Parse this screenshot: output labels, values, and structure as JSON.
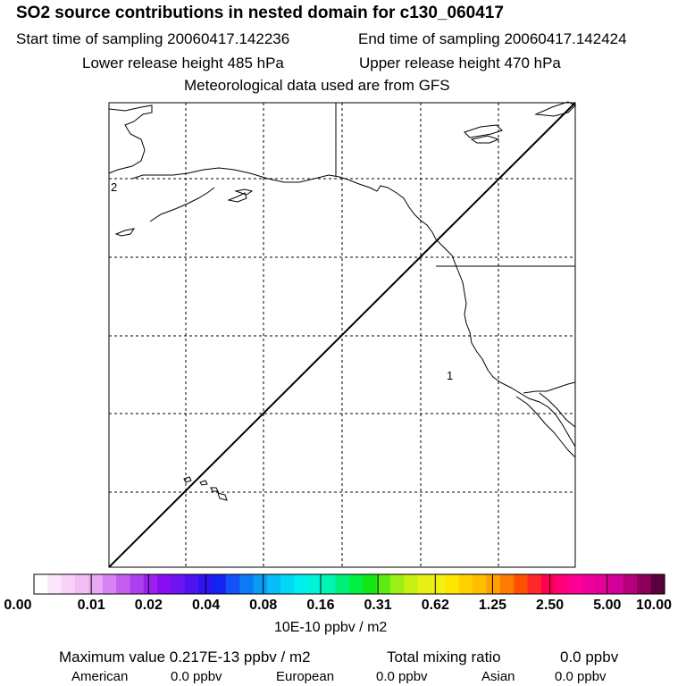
{
  "header": {
    "title": "SO2 source contributions in nested domain for c130_060417",
    "start_time": "Start time of sampling 20060417.142236",
    "end_time": "End time of sampling 20060417.142424",
    "lower_height": "Lower release height  485 hPa",
    "upper_height": "Upper release height  470 hPa",
    "met_data": "Meteorological data used are from GFS"
  },
  "map": {
    "labels": {
      "one": "1",
      "two": "2"
    },
    "colors": {
      "frame": "#000000",
      "grid": "#000000",
      "coast": "#000000",
      "track": "#000000"
    }
  },
  "colorbar": {
    "colors": [
      "#ffffff",
      "#fbe6fb",
      "#f7d2f7",
      "#f3bef3",
      "#e9a9f5",
      "#d884f2",
      "#c45ff0",
      "#ad3ff0",
      "#9a1ff0",
      "#8a0cf0",
      "#6e14f0",
      "#4e14f0",
      "#2e14f0",
      "#1424f0",
      "#1450f5",
      "#0a7af5",
      "#0a9cf5",
      "#0abcf5",
      "#00d8f5",
      "#00f0f0",
      "#00f5d8",
      "#00f5b0",
      "#00f07a",
      "#00f040",
      "#14e614",
      "#5aec14",
      "#9af014",
      "#c8f014",
      "#e6f014",
      "#f5f014",
      "#ffe600",
      "#ffd200",
      "#ffbe00",
      "#ffa000",
      "#ff7a00",
      "#ff5000",
      "#ff2828",
      "#ff0050",
      "#ff0078",
      "#ff0096",
      "#f0009a",
      "#e6009a",
      "#d2009a",
      "#b4007a",
      "#8c005a",
      "#5a003c"
    ],
    "tick_labels": [
      "0.00",
      "0.01",
      "0.02",
      "0.04",
      "0.08",
      "0.16",
      "0.31",
      "0.62",
      "1.25",
      "2.50",
      "5.00",
      "10.00"
    ],
    "units": "10E-10 ppbv / m2"
  },
  "summary": {
    "max_value": "Maximum value  0.217E-13 ppbv / m2",
    "total_label": "Total mixing ratio",
    "total_value": "0.0 ppbv",
    "regions": [
      {
        "name": "American",
        "value": "0.0 ppbv"
      },
      {
        "name": "European",
        "value": "0.0 ppbv"
      },
      {
        "name": "Asian",
        "value": "0.0 ppbv"
      }
    ]
  }
}
